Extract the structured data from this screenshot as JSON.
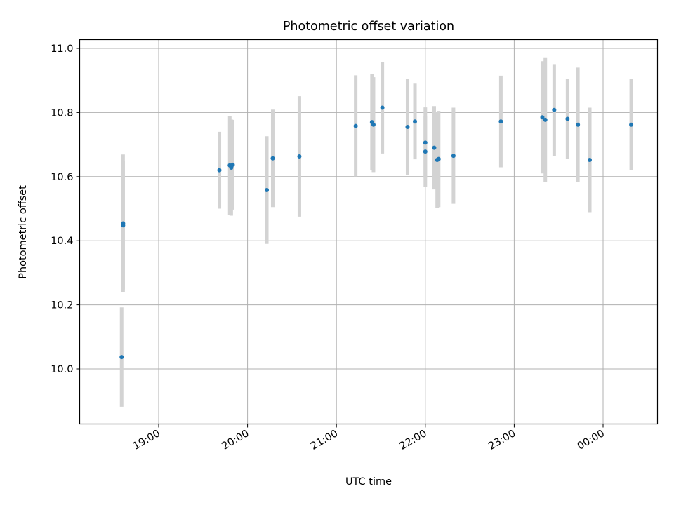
{
  "chart_data": {
    "type": "scatter",
    "title": "Photometric offset variation",
    "xlabel": "UTC time",
    "ylabel": "Photometric offset",
    "x_axis_kind": "time",
    "x_tick_labels": [
      "19:00",
      "20:00",
      "21:00",
      "22:00",
      "23:00",
      "00:00"
    ],
    "y_tick_labels": [
      "10.0",
      "10.2",
      "10.4",
      "10.6",
      "10.8",
      "11.0"
    ],
    "ylim": [
      9.83,
      11.03
    ],
    "grid": true,
    "marker_color": "#1f77b4",
    "errorbar_color": "#d3d3d3",
    "series": [
      {
        "points": [
          {
            "time": "18:35",
            "y": 10.037,
            "err": 0.155
          },
          {
            "time": "18:36",
            "y": 10.454,
            "err": 0.215
          },
          {
            "time": "18:36",
            "y": 10.448,
            "err": 0.2
          },
          {
            "time": "19:41",
            "y": 10.62,
            "err": 0.12
          },
          {
            "time": "19:48",
            "y": 10.635,
            "err": 0.155
          },
          {
            "time": "19:49",
            "y": 10.628,
            "err": 0.15
          },
          {
            "time": "19:50",
            "y": 10.637,
            "err": 0.14
          },
          {
            "time": "20:13",
            "y": 10.558,
            "err": 0.168
          },
          {
            "time": "20:17",
            "y": 10.657,
            "err": 0.152
          },
          {
            "time": "20:35",
            "y": 10.663,
            "err": 0.188
          },
          {
            "time": "21:13",
            "y": 10.758,
            "err": 0.158
          },
          {
            "time": "21:24",
            "y": 10.77,
            "err": 0.15
          },
          {
            "time": "21:25",
            "y": 10.762,
            "err": 0.148
          },
          {
            "time": "21:31",
            "y": 10.815,
            "err": 0.143
          },
          {
            "time": "21:48",
            "y": 10.755,
            "err": 0.15
          },
          {
            "time": "21:53",
            "y": 10.772,
            "err": 0.118
          },
          {
            "time": "22:00",
            "y": 10.706,
            "err": 0.11
          },
          {
            "time": "22:00",
            "y": 10.678,
            "err": 0.11
          },
          {
            "time": "22:06",
            "y": 10.69,
            "err": 0.13
          },
          {
            "time": "22:08",
            "y": 10.652,
            "err": 0.15
          },
          {
            "time": "22:09",
            "y": 10.655,
            "err": 0.15
          },
          {
            "time": "22:19",
            "y": 10.665,
            "err": 0.15
          },
          {
            "time": "22:51",
            "y": 10.772,
            "err": 0.143
          },
          {
            "time": "23:19",
            "y": 10.785,
            "err": 0.175
          },
          {
            "time": "23:21",
            "y": 10.777,
            "err": 0.195
          },
          {
            "time": "23:27",
            "y": 10.808,
            "err": 0.143
          },
          {
            "time": "23:36",
            "y": 10.78,
            "err": 0.125
          },
          {
            "time": "23:43",
            "y": 10.762,
            "err": 0.178
          },
          {
            "time": "23:51",
            "y": 10.652,
            "err": 0.163
          },
          {
            "time": "00:19",
            "y": 10.762,
            "err": 0.142
          }
        ]
      }
    ]
  }
}
